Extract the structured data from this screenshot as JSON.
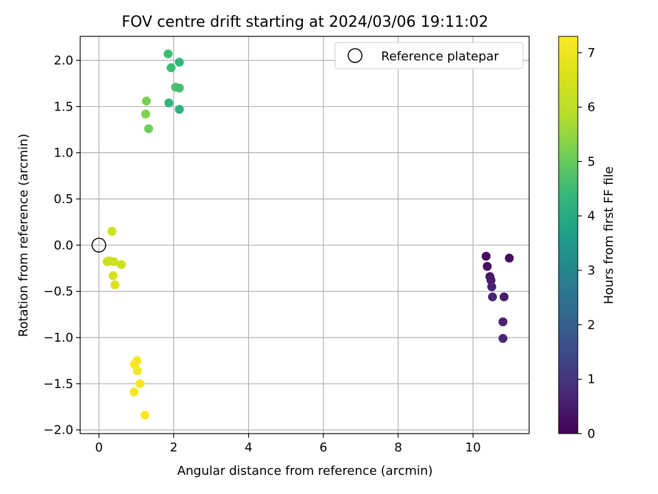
{
  "chart_data": {
    "type": "scatter",
    "title": "FOV centre drift starting at 2024/03/06 19:11:02",
    "xlabel": "Angular distance from reference (arcmin)",
    "ylabel": "Rotation from reference (arcmin)",
    "colorbar_label": "Hours from first FF file",
    "xlim": [
      -0.5,
      11.5
    ],
    "ylim": [
      -2.04,
      2.26
    ],
    "xticks": [
      0,
      2,
      4,
      6,
      8,
      10
    ],
    "xtick_labels": [
      "0",
      "2",
      "4",
      "6",
      "8",
      "10"
    ],
    "yticks": [
      -2.0,
      -1.5,
      -1.0,
      -0.5,
      0.0,
      0.5,
      1.0,
      1.5,
      2.0
    ],
    "ytick_labels": [
      "−2.0",
      "−1.5",
      "−1.0",
      "−0.5",
      "0.0",
      "0.5",
      "1.0",
      "1.5",
      "2.0"
    ],
    "colorbar_range": [
      0,
      7.3
    ],
    "colorbar_ticks": [
      0,
      1,
      2,
      3,
      4,
      5,
      6,
      7
    ],
    "colorbar_tick_labels": [
      "0",
      "1",
      "2",
      "3",
      "4",
      "5",
      "6",
      "7"
    ],
    "colormap": "viridis",
    "grid": true,
    "legend_position": "top-right",
    "legend_label": "Reference platepar",
    "reference": {
      "x": 0,
      "y": 0
    },
    "points": [
      {
        "x": 10.35,
        "y": -0.12,
        "c": 0.2
      },
      {
        "x": 10.38,
        "y": -0.23,
        "c": 0.3
      },
      {
        "x": 10.45,
        "y": -0.34,
        "c": 0.4
      },
      {
        "x": 10.48,
        "y": -0.38,
        "c": 0.5
      },
      {
        "x": 10.5,
        "y": -0.45,
        "c": 0.6
      },
      {
        "x": 10.52,
        "y": -0.56,
        "c": 0.7
      },
      {
        "x": 10.97,
        "y": -0.14,
        "c": 0.2
      },
      {
        "x": 10.83,
        "y": -0.56,
        "c": 0.5
      },
      {
        "x": 10.8,
        "y": -0.83,
        "c": 0.6
      },
      {
        "x": 10.8,
        "y": -1.01,
        "c": 0.7
      },
      {
        "x": 1.85,
        "y": 2.07,
        "c": 4.5
      },
      {
        "x": 2.15,
        "y": 1.98,
        "c": 4.4
      },
      {
        "x": 1.93,
        "y": 1.92,
        "c": 4.5
      },
      {
        "x": 2.05,
        "y": 1.71,
        "c": 4.7
      },
      {
        "x": 2.15,
        "y": 1.7,
        "c": 4.6
      },
      {
        "x": 1.87,
        "y": 1.54,
        "c": 4.3
      },
      {
        "x": 2.15,
        "y": 1.47,
        "c": 4.2
      },
      {
        "x": 1.27,
        "y": 1.56,
        "c": 5.2
      },
      {
        "x": 1.25,
        "y": 1.42,
        "c": 5.3
      },
      {
        "x": 1.33,
        "y": 1.26,
        "c": 5.1
      },
      {
        "x": 0.35,
        "y": 0.15,
        "c": 6.3
      },
      {
        "x": 0.22,
        "y": -0.18,
        "c": 6.4
      },
      {
        "x": 0.28,
        "y": -0.17,
        "c": 6.3
      },
      {
        "x": 0.4,
        "y": -0.18,
        "c": 6.4
      },
      {
        "x": 0.6,
        "y": -0.21,
        "c": 6.3
      },
      {
        "x": 0.38,
        "y": -0.33,
        "c": 6.5
      },
      {
        "x": 0.43,
        "y": -0.43,
        "c": 6.6
      },
      {
        "x": 1.02,
        "y": -1.25,
        "c": 7.1
      },
      {
        "x": 0.95,
        "y": -1.29,
        "c": 7.2
      },
      {
        "x": 1.03,
        "y": -1.36,
        "c": 7.1
      },
      {
        "x": 1.1,
        "y": -1.5,
        "c": 7.2
      },
      {
        "x": 0.94,
        "y": -1.59,
        "c": 7.2
      },
      {
        "x": 1.23,
        "y": -1.84,
        "c": 7.3
      }
    ]
  }
}
